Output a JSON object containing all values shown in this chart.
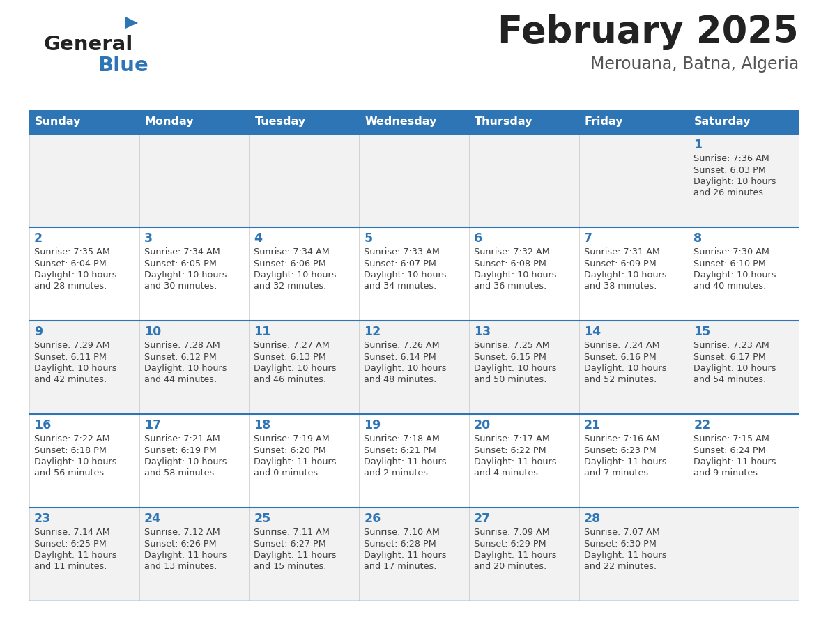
{
  "title": "February 2025",
  "subtitle": "Merouana, Batna, Algeria",
  "header_bg": "#2E75B6",
  "header_text_color": "#FFFFFF",
  "cell_bg_odd": "#F2F2F2",
  "cell_bg_even": "#FFFFFF",
  "border_color": "#2E75B6",
  "day_names": [
    "Sunday",
    "Monday",
    "Tuesday",
    "Wednesday",
    "Thursday",
    "Friday",
    "Saturday"
  ],
  "title_color": "#222222",
  "subtitle_color": "#555555",
  "day_number_color": "#2E75B6",
  "cell_text_color": "#404040",
  "logo_general_color": "#222222",
  "logo_blue_color": "#2E75B6",
  "days": [
    {
      "day": 1,
      "col": 6,
      "row": 0,
      "sunrise": "7:36 AM",
      "sunset": "6:03 PM",
      "daylight_h": "10 hours",
      "daylight_m": "and 26 minutes."
    },
    {
      "day": 2,
      "col": 0,
      "row": 1,
      "sunrise": "7:35 AM",
      "sunset": "6:04 PM",
      "daylight_h": "10 hours",
      "daylight_m": "and 28 minutes."
    },
    {
      "day": 3,
      "col": 1,
      "row": 1,
      "sunrise": "7:34 AM",
      "sunset": "6:05 PM",
      "daylight_h": "10 hours",
      "daylight_m": "and 30 minutes."
    },
    {
      "day": 4,
      "col": 2,
      "row": 1,
      "sunrise": "7:34 AM",
      "sunset": "6:06 PM",
      "daylight_h": "10 hours",
      "daylight_m": "and 32 minutes."
    },
    {
      "day": 5,
      "col": 3,
      "row": 1,
      "sunrise": "7:33 AM",
      "sunset": "6:07 PM",
      "daylight_h": "10 hours",
      "daylight_m": "and 34 minutes."
    },
    {
      "day": 6,
      "col": 4,
      "row": 1,
      "sunrise": "7:32 AM",
      "sunset": "6:08 PM",
      "daylight_h": "10 hours",
      "daylight_m": "and 36 minutes."
    },
    {
      "day": 7,
      "col": 5,
      "row": 1,
      "sunrise": "7:31 AM",
      "sunset": "6:09 PM",
      "daylight_h": "10 hours",
      "daylight_m": "and 38 minutes."
    },
    {
      "day": 8,
      "col": 6,
      "row": 1,
      "sunrise": "7:30 AM",
      "sunset": "6:10 PM",
      "daylight_h": "10 hours",
      "daylight_m": "and 40 minutes."
    },
    {
      "day": 9,
      "col": 0,
      "row": 2,
      "sunrise": "7:29 AM",
      "sunset": "6:11 PM",
      "daylight_h": "10 hours",
      "daylight_m": "and 42 minutes."
    },
    {
      "day": 10,
      "col": 1,
      "row": 2,
      "sunrise": "7:28 AM",
      "sunset": "6:12 PM",
      "daylight_h": "10 hours",
      "daylight_m": "and 44 minutes."
    },
    {
      "day": 11,
      "col": 2,
      "row": 2,
      "sunrise": "7:27 AM",
      "sunset": "6:13 PM",
      "daylight_h": "10 hours",
      "daylight_m": "and 46 minutes."
    },
    {
      "day": 12,
      "col": 3,
      "row": 2,
      "sunrise": "7:26 AM",
      "sunset": "6:14 PM",
      "daylight_h": "10 hours",
      "daylight_m": "and 48 minutes."
    },
    {
      "day": 13,
      "col": 4,
      "row": 2,
      "sunrise": "7:25 AM",
      "sunset": "6:15 PM",
      "daylight_h": "10 hours",
      "daylight_m": "and 50 minutes."
    },
    {
      "day": 14,
      "col": 5,
      "row": 2,
      "sunrise": "7:24 AM",
      "sunset": "6:16 PM",
      "daylight_h": "10 hours",
      "daylight_m": "and 52 minutes."
    },
    {
      "day": 15,
      "col": 6,
      "row": 2,
      "sunrise": "7:23 AM",
      "sunset": "6:17 PM",
      "daylight_h": "10 hours",
      "daylight_m": "and 54 minutes."
    },
    {
      "day": 16,
      "col": 0,
      "row": 3,
      "sunrise": "7:22 AM",
      "sunset": "6:18 PM",
      "daylight_h": "10 hours",
      "daylight_m": "and 56 minutes."
    },
    {
      "day": 17,
      "col": 1,
      "row": 3,
      "sunrise": "7:21 AM",
      "sunset": "6:19 PM",
      "daylight_h": "10 hours",
      "daylight_m": "and 58 minutes."
    },
    {
      "day": 18,
      "col": 2,
      "row": 3,
      "sunrise": "7:19 AM",
      "sunset": "6:20 PM",
      "daylight_h": "11 hours",
      "daylight_m": "and 0 minutes."
    },
    {
      "day": 19,
      "col": 3,
      "row": 3,
      "sunrise": "7:18 AM",
      "sunset": "6:21 PM",
      "daylight_h": "11 hours",
      "daylight_m": "and 2 minutes."
    },
    {
      "day": 20,
      "col": 4,
      "row": 3,
      "sunrise": "7:17 AM",
      "sunset": "6:22 PM",
      "daylight_h": "11 hours",
      "daylight_m": "and 4 minutes."
    },
    {
      "day": 21,
      "col": 5,
      "row": 3,
      "sunrise": "7:16 AM",
      "sunset": "6:23 PM",
      "daylight_h": "11 hours",
      "daylight_m": "and 7 minutes."
    },
    {
      "day": 22,
      "col": 6,
      "row": 3,
      "sunrise": "7:15 AM",
      "sunset": "6:24 PM",
      "daylight_h": "11 hours",
      "daylight_m": "and 9 minutes."
    },
    {
      "day": 23,
      "col": 0,
      "row": 4,
      "sunrise": "7:14 AM",
      "sunset": "6:25 PM",
      "daylight_h": "11 hours",
      "daylight_m": "and 11 minutes."
    },
    {
      "day": 24,
      "col": 1,
      "row": 4,
      "sunrise": "7:12 AM",
      "sunset": "6:26 PM",
      "daylight_h": "11 hours",
      "daylight_m": "and 13 minutes."
    },
    {
      "day": 25,
      "col": 2,
      "row": 4,
      "sunrise": "7:11 AM",
      "sunset": "6:27 PM",
      "daylight_h": "11 hours",
      "daylight_m": "and 15 minutes."
    },
    {
      "day": 26,
      "col": 3,
      "row": 4,
      "sunrise": "7:10 AM",
      "sunset": "6:28 PM",
      "daylight_h": "11 hours",
      "daylight_m": "and 17 minutes."
    },
    {
      "day": 27,
      "col": 4,
      "row": 4,
      "sunrise": "7:09 AM",
      "sunset": "6:29 PM",
      "daylight_h": "11 hours",
      "daylight_m": "and 20 minutes."
    },
    {
      "day": 28,
      "col": 5,
      "row": 4,
      "sunrise": "7:07 AM",
      "sunset": "6:30 PM",
      "daylight_h": "11 hours",
      "daylight_m": "and 22 minutes."
    }
  ]
}
